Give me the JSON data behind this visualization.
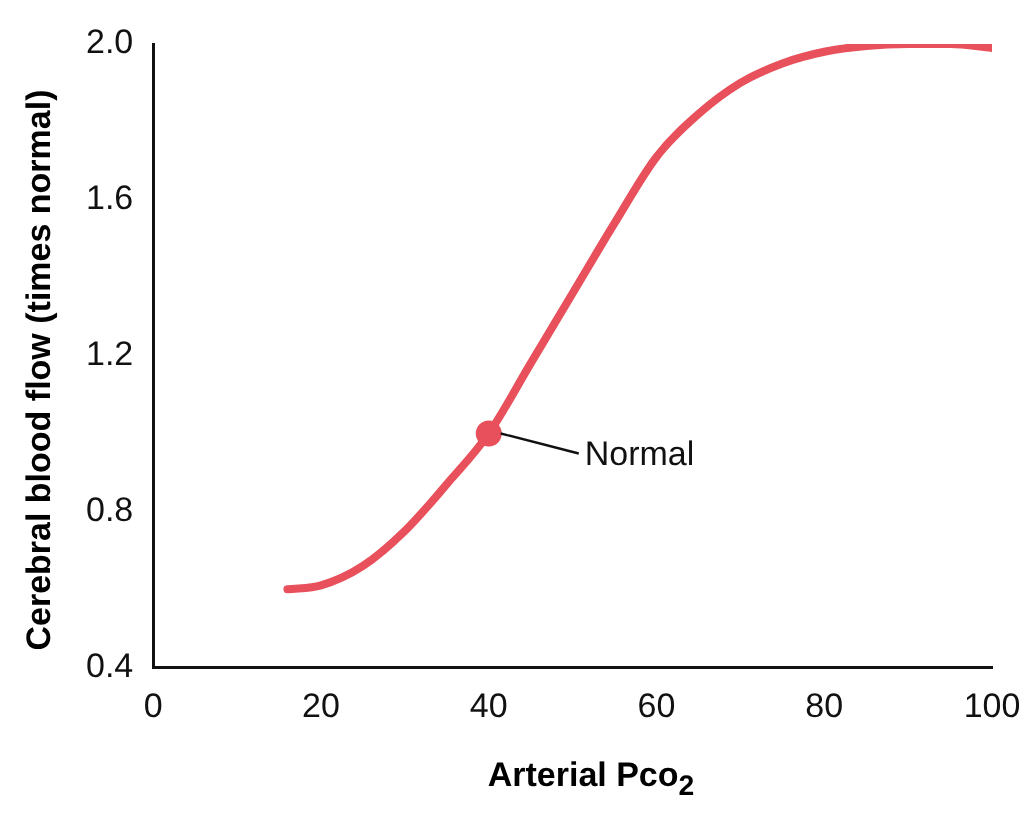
{
  "chart_data": {
    "type": "line",
    "xlabel": "Arterial Pco$_{2}$",
    "ylabel": "Cerebral blood flow (times normal)",
    "xlim": [
      0,
      100
    ],
    "xticks": [
      0,
      20,
      40,
      60,
      80,
      100
    ],
    "ylim": [
      0.4,
      2.0
    ],
    "yticks": [
      0.4,
      0.8,
      1.2,
      1.6,
      {
        "value": 2.0,
        "label": "2.0"
      }
    ],
    "grid": false,
    "legend": false,
    "series": [
      {
        "color": "#e8505b",
        "marker": "none",
        "x": [
          16,
          20,
          25,
          30,
          35,
          40,
          45,
          50,
          55,
          60,
          65,
          70,
          75,
          80,
          85,
          90,
          95,
          100
        ],
        "values": [
          0.6,
          0.61,
          0.66,
          0.75,
          0.87,
          1.0,
          1.18,
          1.36,
          1.54,
          1.71,
          1.82,
          1.9,
          1.95,
          1.98,
          1.995,
          2.0,
          2.0,
          1.99
        ]
      },
      {
        "type": "scatter",
        "color": "#e8505b",
        "marker": "circle",
        "x": [
          40
        ],
        "values": [
          1.0
        ]
      }
    ],
    "annotations": [
      {
        "text": "Normal",
        "x": 40,
        "y": 1.0
      }
    ]
  }
}
